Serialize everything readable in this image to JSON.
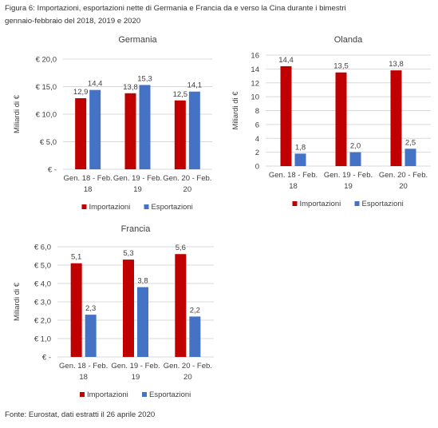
{
  "caption": {
    "line1": "Figura 6: Importazioni, esportazioni nette di Germania e Francia da e verso la Cina durante i bimestri",
    "line2": "gennaio-febbraio del 2018, 2019 e 2020"
  },
  "source": "Fonte: Eurostat, dati estratti il 26 aprile 2020",
  "colors": {
    "importazioni": "#C00000",
    "esportazioni": "#4472C4",
    "grid": "#D9D9D9"
  },
  "chart_data": [
    {
      "type": "bar",
      "title": "Germania",
      "ylabel": "Miliardi di €",
      "categories": [
        [
          "Gen. 18 - Feb.",
          "18"
        ],
        [
          "Gen. 19 - Feb.",
          "19"
        ],
        [
          "Gen. 20 - Feb.",
          "20"
        ]
      ],
      "yticks": [
        0,
        5,
        10,
        15,
        20
      ],
      "ytick_labels": [
        "€ -",
        "€ 5,0",
        "€ 10,0",
        "€ 15,0",
        "€ 20,0"
      ],
      "ylim": [
        0,
        20
      ],
      "series": [
        {
          "name": "Importazioni",
          "values": [
            12.9,
            13.8,
            12.5
          ],
          "labels": [
            "12,9",
            "13,8",
            "12,5"
          ]
        },
        {
          "name": "Esportazioni",
          "values": [
            14.4,
            15.3,
            14.1
          ],
          "labels": [
            "14,4",
            "15,3",
            "14,1"
          ]
        }
      ],
      "grid": true,
      "legend": "bottom"
    },
    {
      "type": "bar",
      "title": "Olanda",
      "ylabel": "Miliardi di €",
      "categories": [
        [
          "Gen. 18 - Feb.",
          "18"
        ],
        [
          "Gen. 19 - Feb.",
          "19"
        ],
        [
          "Gen. 20 - Feb.",
          "20"
        ]
      ],
      "yticks": [
        0,
        2,
        4,
        6,
        8,
        10,
        12,
        14,
        16
      ],
      "ytick_labels": [
        "0",
        "2",
        "4",
        "6",
        "8",
        "10",
        "12",
        "14",
        "16"
      ],
      "ylim": [
        0,
        16
      ],
      "series": [
        {
          "name": "Importazioni",
          "values": [
            14.4,
            13.5,
            13.8
          ],
          "labels": [
            "14,4",
            "13,5",
            "13,8"
          ]
        },
        {
          "name": "Esportazioni",
          "values": [
            1.8,
            2.0,
            2.5
          ],
          "labels": [
            "1,8",
            "2,0",
            "2,5"
          ]
        }
      ],
      "grid": true,
      "legend": "bottom"
    },
    {
      "type": "bar",
      "title": "Francia",
      "ylabel": "Miliardi di €",
      "categories": [
        [
          "Gen. 18 - Feb.",
          "18"
        ],
        [
          "Gen. 19 - Feb.",
          "19"
        ],
        [
          "Gen. 20 - Feb.",
          "20"
        ]
      ],
      "yticks": [
        0,
        1,
        2,
        3,
        4,
        5,
        6
      ],
      "ytick_labels": [
        "€ -",
        "€ 1,0",
        "€ 2,0",
        "€ 3,0",
        "€ 4,0",
        "€ 5,0",
        "€ 6,0"
      ],
      "ylim": [
        0,
        6
      ],
      "series": [
        {
          "name": "Importazioni",
          "values": [
            5.1,
            5.3,
            5.6
          ],
          "labels": [
            "5,1",
            "5,3",
            "5,6"
          ]
        },
        {
          "name": "Esportazioni",
          "values": [
            2.3,
            3.8,
            2.2
          ],
          "labels": [
            "2,3",
            "3,8",
            "2,2"
          ]
        }
      ],
      "grid": true,
      "legend": "bottom"
    }
  ]
}
